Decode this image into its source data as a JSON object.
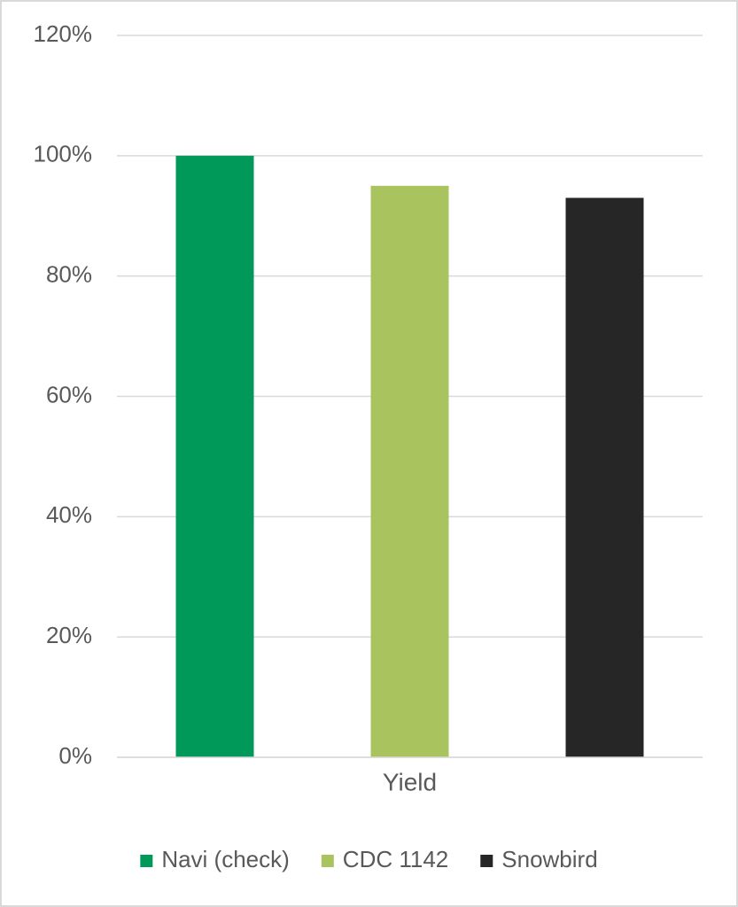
{
  "chart_data": {
    "type": "bar",
    "categories": [
      "Yield"
    ],
    "series": [
      {
        "name": "Navi (check)",
        "color": "#009959",
        "values": [
          100
        ]
      },
      {
        "name": "CDC 1142",
        "color": "#a9c45f",
        "values": [
          95
        ]
      },
      {
        "name": "Snowbird",
        "color": "#262626",
        "values": [
          93
        ]
      }
    ],
    "ylim": [
      0,
      120
    ],
    "yticks": [
      {
        "value": 0,
        "label": "0%"
      },
      {
        "value": 20,
        "label": "20%"
      },
      {
        "value": 40,
        "label": "40%"
      },
      {
        "value": 60,
        "label": "60%"
      },
      {
        "value": 80,
        "label": "80%"
      },
      {
        "value": 100,
        "label": "100%"
      },
      {
        "value": 120,
        "label": "120%"
      }
    ],
    "grid": true,
    "legend": "bottom"
  }
}
